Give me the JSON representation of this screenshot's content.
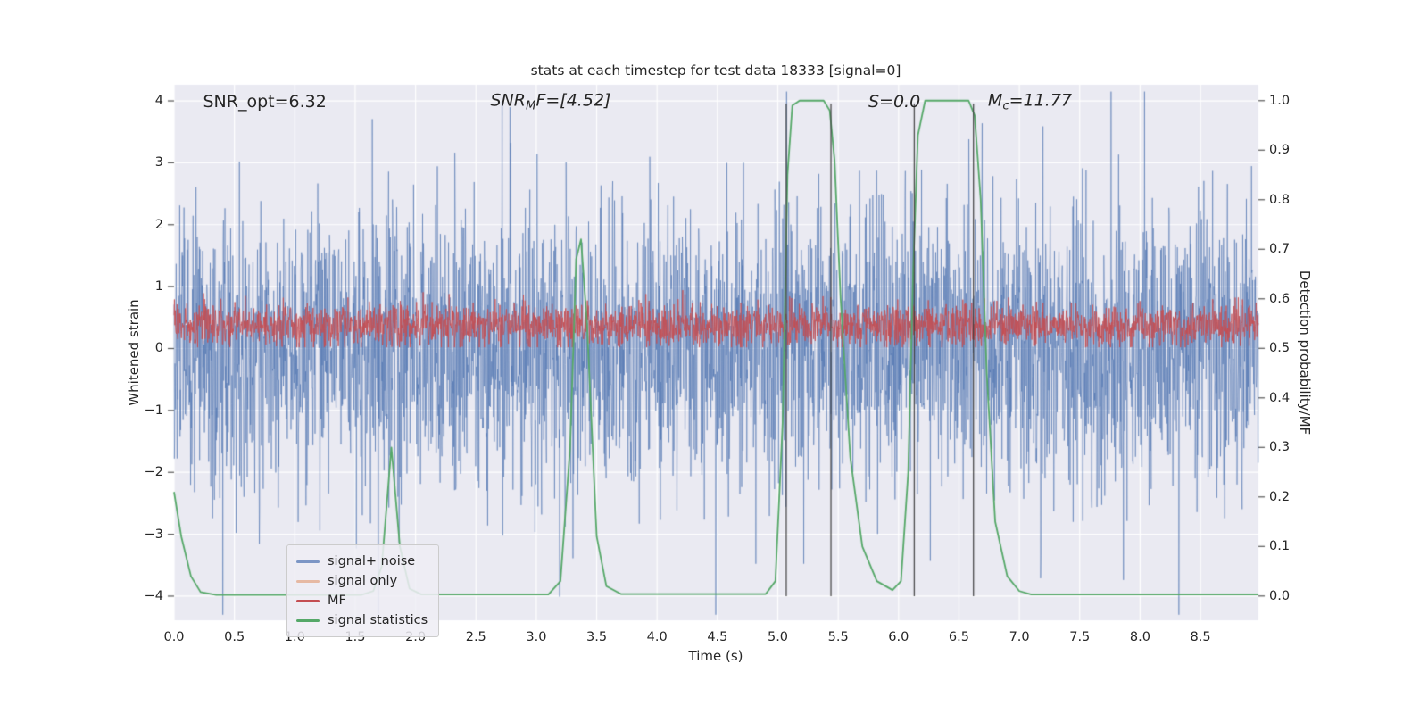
{
  "title": "stats at each timestep for test data 18333 [signal=0]",
  "axes": {
    "x": {
      "label": "Time (s)",
      "min": 0,
      "max": 8.98,
      "tick_values": [
        0,
        0.5,
        1,
        1.5,
        2,
        2.5,
        3,
        3.5,
        4,
        4.5,
        5,
        5.5,
        6,
        6.5,
        7,
        7.5,
        8,
        8.5
      ],
      "tick_labels": [
        "0.0",
        "0.5",
        "1.0",
        "1.5",
        "2.0",
        "2.5",
        "3.0",
        "3.5",
        "4.0",
        "4.5",
        "5.0",
        "5.5",
        "6.0",
        "6.5",
        "7.0",
        "7.5",
        "8.0",
        "8.5"
      ]
    },
    "y_left": {
      "label": "Whitened strain",
      "min": -4.39,
      "max": 4.26,
      "tick_values": [
        4,
        3,
        2,
        1,
        0,
        -1,
        -2,
        -3,
        -4
      ],
      "tick_labels": [
        "4",
        "3",
        "2",
        "1",
        "0",
        "−1",
        "−2",
        "−3",
        "−4"
      ]
    },
    "y_right": {
      "label": "Detection probability/MF",
      "min": -0.049,
      "max": 1.032,
      "tick_values": [
        1.0,
        0.9,
        0.8,
        0.7,
        0.6,
        0.5,
        0.4,
        0.3,
        0.2,
        0.1,
        0.0
      ],
      "tick_labels": [
        "1.0",
        "0.9",
        "0.8",
        "0.7",
        "0.6",
        "0.5",
        "0.4",
        "0.3",
        "0.2",
        "0.1",
        "0.0"
      ]
    }
  },
  "annotations": [
    {
      "id": "snr-opt",
      "x": 0.24,
      "italic": false,
      "parts": [
        {
          "t": "SNR_opt=6.32"
        }
      ]
    },
    {
      "id": "snr-mf",
      "x": 2.62,
      "italic": true,
      "parts": [
        {
          "t": "SNR"
        },
        {
          "t": "M",
          "sub": true
        },
        {
          "t": "F=[4.52]"
        }
      ]
    },
    {
      "id": "s-stat",
      "x": 5.75,
      "italic": true,
      "parts": [
        {
          "t": "S=0.0"
        }
      ]
    },
    {
      "id": "m-chirp",
      "x": 6.74,
      "italic": true,
      "parts": [
        {
          "t": "M"
        },
        {
          "t": "c",
          "sub": true
        },
        {
          "t": "=11.77"
        }
      ]
    }
  ],
  "legend": {
    "items": [
      {
        "label": "signal+ noise",
        "color": "#4c72b0",
        "alpha": 0.7
      },
      {
        "label": "signal only",
        "color": "#dd8452",
        "alpha": 0.5
      },
      {
        "label": "MF",
        "color": "#c44e52",
        "alpha": 1
      },
      {
        "label": "signal statistics",
        "color": "#55a868",
        "alpha": 1
      }
    ]
  },
  "chart_data": {
    "type": "line",
    "title": "stats at each timestep for test data 18333 [signal=0]",
    "xlabel": "Time (s)",
    "ylabel_left": "Whitened strain",
    "ylabel_right": "Detection probability/MF",
    "x_range": [
      0,
      8.98
    ],
    "y_left_range": [
      -4.39,
      4.26
    ],
    "y_right_range": [
      -0.049,
      1.032
    ],
    "grid": true,
    "plot_bg": "#eaeaf2",
    "grid_color": "#ffffff",
    "series": [
      {
        "name": "signal+ noise",
        "axis": "left",
        "style": "noise",
        "color": "#4c72b0",
        "alpha": 0.62,
        "mean": 0,
        "sigma": 1.05,
        "spike_prob": 0.03,
        "spike_scale_min": 1.4,
        "spike_scale_max": 2.9,
        "n": 3600,
        "seed": 1337,
        "clip_min": -4.3,
        "clip_max": 4.15,
        "line_width": 0.9
      },
      {
        "name": "signal only",
        "axis": "left",
        "style": "flat",
        "color": "#dd8452",
        "alpha": 0.5,
        "value": 0,
        "visible": false,
        "note": "flat zero, not visible (signal=0)"
      },
      {
        "name": "MF",
        "axis": "left",
        "style": "noise",
        "color": "#c44e52",
        "alpha": 0.95,
        "mean": 0.38,
        "sigma": 0.17,
        "spike_prob": 0.012,
        "spike_scale_min": 1.4,
        "spike_scale_max": 2.1,
        "n": 2800,
        "seed": 777,
        "clip_min": 0.02,
        "clip_max": 1.15,
        "line_width": 0.9
      },
      {
        "name": "signal statistics",
        "axis": "right",
        "style": "polyline",
        "color": "#55a868",
        "alpha": 1,
        "line_width": 1.8,
        "points": [
          [
            0,
            0.21
          ],
          [
            0.06,
            0.12
          ],
          [
            0.14,
            0.04
          ],
          [
            0.22,
            0.008
          ],
          [
            0.35,
            0.002
          ],
          [
            1.55,
            0.002
          ],
          [
            1.65,
            0.01
          ],
          [
            1.72,
            0.06
          ],
          [
            1.8,
            0.3
          ],
          [
            1.87,
            0.1
          ],
          [
            1.95,
            0.015
          ],
          [
            2.05,
            0.003
          ],
          [
            3.1,
            0.003
          ],
          [
            3.2,
            0.03
          ],
          [
            3.28,
            0.3
          ],
          [
            3.33,
            0.68
          ],
          [
            3.37,
            0.72
          ],
          [
            3.42,
            0.55
          ],
          [
            3.5,
            0.12
          ],
          [
            3.58,
            0.02
          ],
          [
            3.7,
            0.004
          ],
          [
            4.9,
            0.004
          ],
          [
            4.98,
            0.03
          ],
          [
            5.04,
            0.35
          ],
          [
            5.08,
            0.85
          ],
          [
            5.12,
            0.99
          ],
          [
            5.18,
            1.0
          ],
          [
            5.38,
            1.0
          ],
          [
            5.43,
            0.98
          ],
          [
            5.47,
            0.88
          ],
          [
            5.52,
            0.6
          ],
          [
            5.6,
            0.28
          ],
          [
            5.7,
            0.1
          ],
          [
            5.82,
            0.03
          ],
          [
            5.95,
            0.012
          ],
          [
            6.02,
            0.03
          ],
          [
            6.08,
            0.25
          ],
          [
            6.12,
            0.65
          ],
          [
            6.16,
            0.93
          ],
          [
            6.22,
            1.0
          ],
          [
            6.58,
            1.0
          ],
          [
            6.63,
            0.97
          ],
          [
            6.68,
            0.8
          ],
          [
            6.73,
            0.45
          ],
          [
            6.8,
            0.15
          ],
          [
            6.9,
            0.04
          ],
          [
            7.0,
            0.01
          ],
          [
            7.1,
            0.003
          ],
          [
            8.98,
            0.003
          ]
        ]
      }
    ],
    "vlines": {
      "x": [
        5.07,
        5.44,
        6.13,
        6.62
      ],
      "color": "#3b3b3b"
    }
  }
}
